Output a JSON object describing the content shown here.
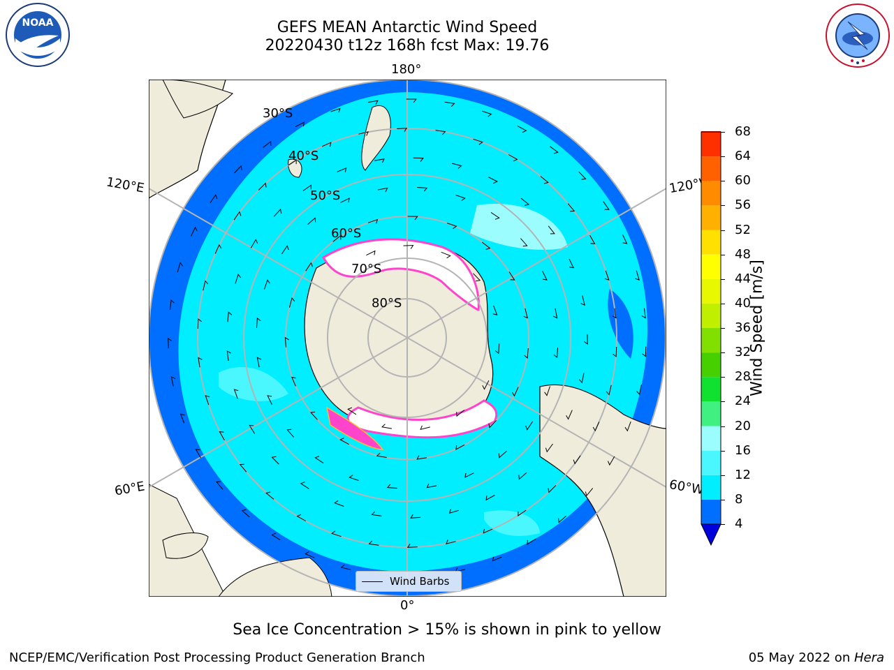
{
  "header": {
    "title_line1": "GEFS MEAN Antarctic Wind Speed",
    "title_line2": "20220430 t12z 168h fcst   Max: 19.76"
  },
  "logos": {
    "left": {
      "text": "NOAA",
      "ring_text": "NATIONAL OCEANIC AND ATMOSPHERIC ADMINISTRATION · U.S. DEPARTMENT OF COMMERCE"
    },
    "right": {
      "ring_text": "NATIONAL WEATHER SERVICE"
    }
  },
  "map": {
    "projection": "south polar stereographic",
    "lon_labels": [
      "180°",
      "120°E",
      "120°W",
      "60°E",
      "60°W",
      "0°"
    ],
    "lat_labels": [
      "30°S",
      "40°S",
      "50°S",
      "60°S",
      "70°S",
      "80°S"
    ],
    "legend_label": "Wind Barbs",
    "colors": {
      "land": "#efecdc",
      "ice": "#ffffff",
      "ice_edge": "#ff44cc",
      "ice_edge_inner": "#ffb833",
      "grid": "#b4b4b4"
    }
  },
  "colorbar": {
    "label": "Wind Speed [m/s]",
    "ticks": [
      "68",
      "64",
      "60",
      "56",
      "52",
      "48",
      "44",
      "40",
      "36",
      "32",
      "28",
      "24",
      "20",
      "16",
      "12",
      "8",
      "4"
    ],
    "colors": [
      "#0000dd",
      "#006eff",
      "#00eeff",
      "#4af7ff",
      "#9cfdff",
      "#40f080",
      "#10e030",
      "#46d000",
      "#82e000",
      "#c0f000",
      "#e8f800",
      "#ffff00",
      "#ffe000",
      "#ffb000",
      "#ff8c00",
      "#ff6000",
      "#ff3000",
      "#ff0000"
    ]
  },
  "footer": {
    "note": "Sea Ice Concentration > 15% is shown in pink to yellow",
    "left": "NCEP/EMC/Verification Post Processing Product Generation Branch",
    "right_date": "05 May 2022 on ",
    "right_machine": "Hera"
  }
}
